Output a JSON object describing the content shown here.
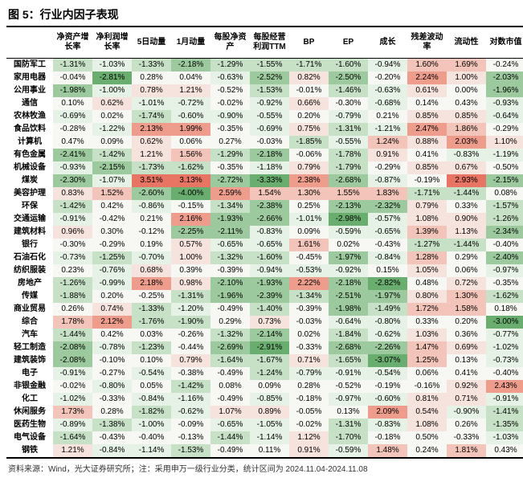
{
  "title": "图 5：行业内因子表现",
  "footnote": "资料来源：Wind，光大证券研究所；注：采用申万一级行业分类，统计区间为 2024.11.04-2024.11.08",
  "color_scale": {
    "neg_strong": "#6aae6f",
    "neg_med": "#9cc99d",
    "neg_light": "#c7e1c7",
    "neg_faint": "#e5f2e5",
    "neutral": "#f7f8f4",
    "pos_faint": "#f7e3dd",
    "pos_light": "#f3c4b9",
    "pos_med": "#ee9d8d",
    "pos_strong": "#e87563"
  },
  "columns": [
    "净资产增长率",
    "净利润增长率",
    "5日动量",
    "1月动量",
    "每股净资产",
    "每股经营利润TTM",
    "BP",
    "EP",
    "成长",
    "残差波动率",
    "流动性",
    "对数市值"
  ],
  "rows": [
    {
      "label": "国防军工",
      "v": [
        -1.31,
        -1.03,
        -1.33,
        -2.18,
        -1.29,
        -1.55,
        -1.71,
        -1.6,
        -0.94,
        1.6,
        1.69,
        -0.24
      ]
    },
    {
      "label": "家用电器",
      "v": [
        -0.04,
        -2.81,
        0.28,
        0.04,
        -0.63,
        -2.52,
        0.82,
        -2.5,
        -0.2,
        2.24,
        1.0,
        -2.03
      ]
    },
    {
      "label": "公用事业",
      "v": [
        -1.98,
        -1.0,
        0.78,
        1.21,
        -0.52,
        -1.53,
        -0.01,
        -1.46,
        -0.63,
        0.61,
        0.0,
        -1.96
      ]
    },
    {
      "label": "通信",
      "v": [
        0.1,
        0.62,
        -1.01,
        -0.72,
        -0.02,
        -0.92,
        0.66,
        -0.3,
        -0.68,
        0.14,
        0.43,
        -0.93
      ]
    },
    {
      "label": "农林牧渔",
      "v": [
        -0.69,
        0.02,
        -1.74,
        -0.6,
        -0.9,
        -0.55,
        0.2,
        -0.79,
        0.21,
        0.85,
        0.85,
        -0.64
      ]
    },
    {
      "label": "食品饮料",
      "v": [
        -0.28,
        -1.22,
        2.13,
        1.99,
        -0.35,
        -0.69,
        0.75,
        -1.31,
        -1.21,
        2.47,
        1.86,
        -0.29
      ]
    },
    {
      "label": "计算机",
      "v": [
        0.47,
        0.09,
        0.62,
        0.06,
        0.27,
        -0.03,
        -1.85,
        -0.55,
        1.24,
        0.88,
        2.03,
        1.1
      ]
    },
    {
      "label": "有色金属",
      "v": [
        -2.41,
        -1.42,
        1.21,
        1.56,
        -1.29,
        -2.18,
        -0.06,
        -1.78,
        0.91,
        0.41,
        -0.83,
        -1.19
      ]
    },
    {
      "label": "机械设备",
      "v": [
        -0.93,
        -2.15,
        -1.73,
        -1.62,
        -0.35,
        -1.18,
        0.79,
        -1.79,
        -0.29,
        0.85,
        0.67,
        -0.5
      ]
    },
    {
      "label": "煤炭",
      "v": [
        -2.3,
        -1.07,
        3.51,
        3.13,
        -2.72,
        -3.33,
        2.38,
        -2.68,
        -0.87,
        -0.19,
        2.93,
        -2.15
      ]
    },
    {
      "label": "美容护理",
      "v": [
        0.83,
        1.52,
        -2.6,
        -4.0,
        2.59,
        1.54,
        1.3,
        1.55,
        1.83,
        -1.71,
        -1.44,
        0.08
      ]
    },
    {
      "label": "环保",
      "v": [
        -1.42,
        0.42,
        -0.86,
        -0.15,
        -1.34,
        -2.38,
        0.25,
        -2.13,
        -2.32,
        0.79,
        0.33,
        -1.57
      ]
    },
    {
      "label": "交通运输",
      "v": [
        -0.91,
        -0.42,
        0.21,
        2.16,
        -1.93,
        -2.66,
        -1.01,
        -2.98,
        -0.57,
        1.08,
        0.9,
        -1.26
      ]
    },
    {
      "label": "建筑材料",
      "v": [
        0.96,
        0.3,
        -0.12,
        -2.25,
        -2.11,
        -0.83,
        0.09,
        -0.59,
        -0.65,
        1.39,
        1.13,
        -2.34
      ]
    },
    {
      "label": "银行",
      "v": [
        -0.3,
        -0.29,
        0.19,
        0.57,
        -0.65,
        -0.65,
        1.61,
        0.02,
        -0.43,
        -1.27,
        -1.44,
        -0.4
      ]
    },
    {
      "label": "石油石化",
      "v": [
        -0.73,
        -1.25,
        -0.7,
        1.0,
        -1.32,
        -1.6,
        -0.45,
        -1.97,
        -0.84,
        1.28,
        0.29,
        -2.4
      ]
    },
    {
      "label": "纺织服装",
      "v": [
        0.23,
        -0.76,
        0.68,
        0.39,
        -0.39,
        -0.94,
        -0.53,
        -0.92,
        0.15,
        1.05,
        0.06,
        -0.97
      ]
    },
    {
      "label": "房地产",
      "v": [
        -1.26,
        -0.99,
        2.18,
        0.98,
        -2.1,
        -1.93,
        2.22,
        -2.18,
        -2.82,
        0.48,
        0.72,
        -0.35
      ]
    },
    {
      "label": "传媒",
      "v": [
        -1.88,
        0.2,
        -0.25,
        -1.31,
        -1.96,
        -2.39,
        -1.34,
        -2.51,
        -1.97,
        0.8,
        1.3,
        -1.62
      ]
    },
    {
      "label": "商业贸易",
      "v": [
        0.26,
        0.74,
        -1.33,
        -1.2,
        -0.49,
        -1.4,
        -0.39,
        -1.98,
        -1.49,
        1.72,
        1.58,
        0.18
      ]
    },
    {
      "label": "综合",
      "v": [
        1.78,
        2.12,
        -1.76,
        -1.9,
        0.29,
        0.73,
        -0.03,
        -0.64,
        -0.8,
        0.33,
        0.2,
        -3.0
      ]
    },
    {
      "label": "汽车",
      "v": [
        -1.44,
        0.42,
        0.03,
        -0.26,
        -1.32,
        -2.14,
        0.02,
        -1.84,
        -0.62,
        1.03,
        0.36,
        -0.77
      ]
    },
    {
      "label": "轻工制造",
      "v": [
        -2.08,
        -0.78,
        -1.23,
        -0.44,
        -2.69,
        -2.91,
        -0.33,
        -2.68,
        -2.26,
        1.47,
        0.69,
        -1.02
      ]
    },
    {
      "label": "建筑装饰",
      "v": [
        -2.08,
        -0.1,
        0.1,
        0.79,
        -1.64,
        -1.67,
        0.71,
        -1.65,
        -3.07,
        1.25,
        0.13,
        -0.73
      ]
    },
    {
      "label": "电子",
      "v": [
        -0.91,
        -0.27,
        -0.54,
        -0.38,
        -0.49,
        -1.24,
        -0.79,
        -0.91,
        -0.54,
        0.06,
        0.41,
        -0.4
      ]
    },
    {
      "label": "非银金融",
      "v": [
        -0.02,
        -0.8,
        0.05,
        -1.42,
        0.08,
        0.09,
        0.28,
        -0.52,
        -0.19,
        -0.16,
        0.92,
        2.43
      ]
    },
    {
      "label": "化工",
      "v": [
        -1.02,
        -0.33,
        -0.84,
        -1.16,
        -0.49,
        -0.85,
        -0.18,
        -0.97,
        -0.6,
        0.81,
        0.71,
        -0.91
      ]
    },
    {
      "label": "休闲服务",
      "v": [
        1.73,
        0.28,
        -1.82,
        -0.62,
        1.07,
        0.89,
        -0.05,
        0.13,
        2.09,
        0.54,
        -0.9,
        -1.41
      ]
    },
    {
      "label": "医药生物",
      "v": [
        -0.89,
        -1.38,
        -1.0,
        -0.09,
        -0.65,
        -1.05,
        -0.02,
        -1.31,
        -0.83,
        1.08,
        0.26,
        -1.35
      ]
    },
    {
      "label": "电气设备",
      "v": [
        -1.64,
        -0.43,
        -0.4,
        -0.13,
        -1.44,
        -1.14,
        1.12,
        -1.7,
        -0.18,
        0.5,
        -0.33,
        -1.03
      ]
    },
    {
      "label": "钢铁",
      "v": [
        1.21,
        -0.84,
        -1.14,
        -1.53,
        -0.49,
        0.11,
        0.91,
        -0.59,
        1.48,
        0.24,
        1.81,
        0.43
      ]
    }
  ]
}
